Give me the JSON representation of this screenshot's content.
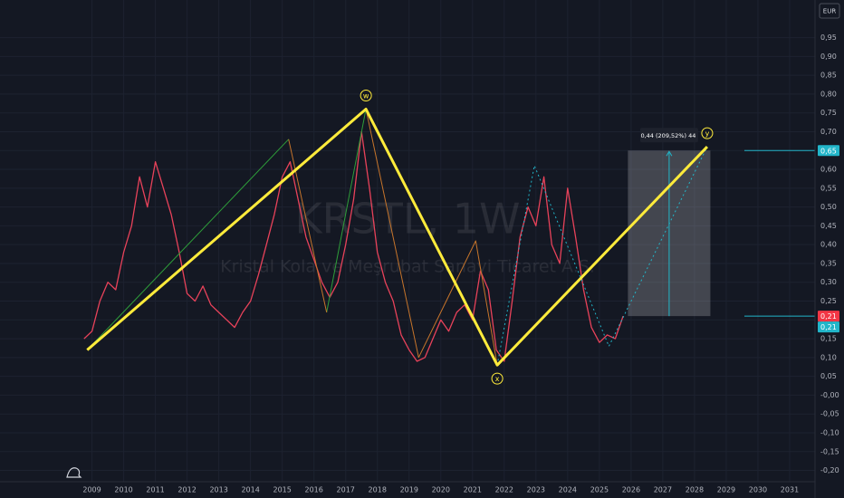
{
  "chart_data": {
    "type": "line",
    "watermark_symbol": "KRSTL, 1W",
    "watermark_name": "Kristal Kola ve Meşrubat Sanayi Ticaret A.Ş.",
    "currency": "EUR",
    "grid": true,
    "xlim": [
      2006.1,
      2031.8
    ],
    "ylim": [
      -0.23,
      1.05
    ],
    "xticks": [
      2009,
      2010,
      2011,
      2012,
      2013,
      2014,
      2015,
      2016,
      2017,
      2018,
      2019,
      2020,
      2021,
      2022,
      2023,
      2024,
      2025,
      2026,
      2027,
      2028,
      2029,
      2030,
      2031
    ],
    "yticks": [
      {
        "value": 0.95,
        "label": "0,95"
      },
      {
        "value": 0.9,
        "label": "0,90"
      },
      {
        "value": 0.85,
        "label": "0,85"
      },
      {
        "value": 0.8,
        "label": "0,80"
      },
      {
        "value": 0.75,
        "label": "0,75"
      },
      {
        "value": 0.7,
        "label": "0,70"
      },
      {
        "value": 0.65,
        "label": "0,65"
      },
      {
        "value": 0.6,
        "label": "0,60"
      },
      {
        "value": 0.55,
        "label": "0,55"
      },
      {
        "value": 0.5,
        "label": "0,50"
      },
      {
        "value": 0.45,
        "label": "0,45"
      },
      {
        "value": 0.4,
        "label": "0,40"
      },
      {
        "value": 0.35,
        "label": "0,35"
      },
      {
        "value": 0.3,
        "label": "0,30"
      },
      {
        "value": 0.25,
        "label": "0,25"
      },
      {
        "value": 0.2,
        "label": "0,20"
      },
      {
        "value": 0.15,
        "label": "0,15"
      },
      {
        "value": 0.1,
        "label": "0,10"
      },
      {
        "value": 0.05,
        "label": "0,05"
      },
      {
        "value": 0,
        "label": "-0,00"
      },
      {
        "value": -0.05,
        "label": "-0,05"
      },
      {
        "value": -0.1,
        "label": "-0,10"
      },
      {
        "value": -0.15,
        "label": "-0,15"
      },
      {
        "value": -0.2,
        "label": "-0,20"
      }
    ],
    "x": [
      2008.75,
      2009,
      2009.25,
      2009.5,
      2009.75,
      2010,
      2010.25,
      2010.5,
      2010.75,
      2011,
      2011.25,
      2011.5,
      2011.75,
      2012,
      2012.25,
      2012.5,
      2012.75,
      2013,
      2013.25,
      2013.5,
      2013.75,
      2014,
      2014.25,
      2014.5,
      2014.75,
      2015,
      2015.25,
      2015.5,
      2015.75,
      2016,
      2016.25,
      2016.5,
      2016.75,
      2017,
      2017.25,
      2017.5,
      2017.75,
      2018,
      2018.25,
      2018.5,
      2018.75,
      2019,
      2019.25,
      2019.5,
      2019.75,
      2020,
      2020.25,
      2020.5,
      2020.75,
      2021,
      2021.25,
      2021.5,
      2021.75,
      2022,
      2022.25,
      2022.5,
      2022.75,
      2023,
      2023.25,
      2023.5,
      2023.75,
      2024,
      2024.25,
      2024.5,
      2024.75,
      2025,
      2025.25,
      2025.5,
      2025.75
    ],
    "series": [
      {
        "color": "#e8425a",
        "values": [
          0.15,
          0.17,
          0.25,
          0.3,
          0.28,
          0.38,
          0.45,
          0.58,
          0.5,
          0.62,
          0.55,
          0.48,
          0.38,
          0.27,
          0.25,
          0.29,
          0.24,
          0.22,
          0.2,
          0.18,
          0.22,
          0.25,
          0.32,
          0.4,
          0.48,
          0.58,
          0.62,
          0.52,
          0.42,
          0.36,
          0.3,
          0.26,
          0.3,
          0.4,
          0.52,
          0.7,
          0.55,
          0.38,
          0.3,
          0.25,
          0.16,
          0.12,
          0.09,
          0.1,
          0.15,
          0.2,
          0.17,
          0.22,
          0.24,
          0.2,
          0.33,
          0.28,
          0.12,
          0.09,
          0.25,
          0.42,
          0.5,
          0.45,
          0.58,
          0.4,
          0.35,
          0.55,
          0.42,
          0.28,
          0.18,
          0.14,
          0.16,
          0.15,
          0.21
        ]
      }
    ],
    "drawings": [
      {
        "color": "#2e9e3a",
        "width": 1,
        "dash": false,
        "x": [
          2008.85,
          2015.2
        ],
        "y": [
          0.12,
          0.68
        ]
      },
      {
        "color": "#2e9e3a",
        "width": 1,
        "dash": false,
        "x": [
          2016.4,
          2017.64
        ],
        "y": [
          0.22,
          0.76
        ]
      },
      {
        "color": "#c7752b",
        "width": 1,
        "dash": false,
        "x": [
          2015.2,
          2016.4
        ],
        "y": [
          0.68,
          0.22
        ]
      },
      {
        "color": "#c7752b",
        "width": 1,
        "dash": false,
        "x": [
          2017.64,
          2019.3,
          2021.1,
          2021.78
        ],
        "y": [
          0.76,
          0.1,
          0.41,
          0.08
        ]
      },
      {
        "color": "#22b5c9",
        "width": 1,
        "dash": true,
        "x": [
          2021.78,
          2022.95,
          2025.3,
          2028.4
        ],
        "y": [
          0.08,
          0.61,
          0.13,
          0.66
        ]
      },
      {
        "color": "#ffeb3b",
        "width": 3,
        "dash": false,
        "x": [
          2008.85,
          2017.64,
          2021.78,
          2028.4
        ],
        "y": [
          0.12,
          0.76,
          0.08,
          0.66
        ],
        "point_labels": [
          null,
          "w",
          "x",
          "y"
        ]
      }
    ],
    "projection": {
      "x": [
        2025.9,
        2028.5
      ],
      "y": [
        0.21,
        0.65
      ],
      "label": "0,44 (209,52%) 44"
    },
    "price_tags": [
      {
        "value": 0.65,
        "label": "0,65",
        "color": "#22b5c9"
      },
      {
        "value": 0.21,
        "label": "0,21",
        "color": "#f23645"
      },
      {
        "value": 0.21,
        "label": "0,21",
        "color": "#22b5c9"
      }
    ]
  }
}
